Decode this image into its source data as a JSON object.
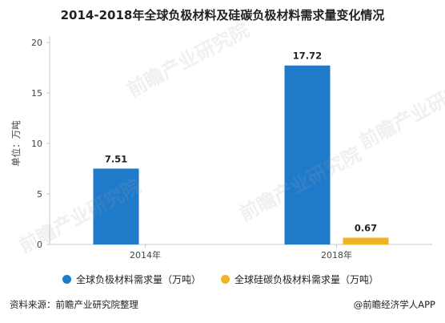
{
  "chart_data": {
    "type": "bar",
    "title": "2014-2018年全球负极材料及硅碳负极材料需求量变化情况",
    "ylabel": "单位：万吨",
    "categories": [
      "2014年",
      "2018年"
    ],
    "series": [
      {
        "name": "全球负极材料需求量（万吨）",
        "values": [
          7.51,
          17.72
        ],
        "color": "#1f7ac9"
      },
      {
        "name": "全球硅碳负极材料需求量（万吨）",
        "values": [
          null,
          0.67
        ],
        "color": "#f0b324"
      }
    ],
    "data_labels": [
      [
        "7.51",
        "17.72"
      ],
      [
        "",
        "0.67"
      ]
    ],
    "yticks": [
      "0",
      "5",
      "10",
      "15",
      "20"
    ],
    "ylim": [
      0,
      20
    ],
    "grid": false,
    "legend_position": "bottom"
  },
  "footer": {
    "source": "资料来源：前瞻产业研究院整理",
    "brand": "@前瞻经济学人APP"
  },
  "watermark_text": "前瞻产业研究院"
}
